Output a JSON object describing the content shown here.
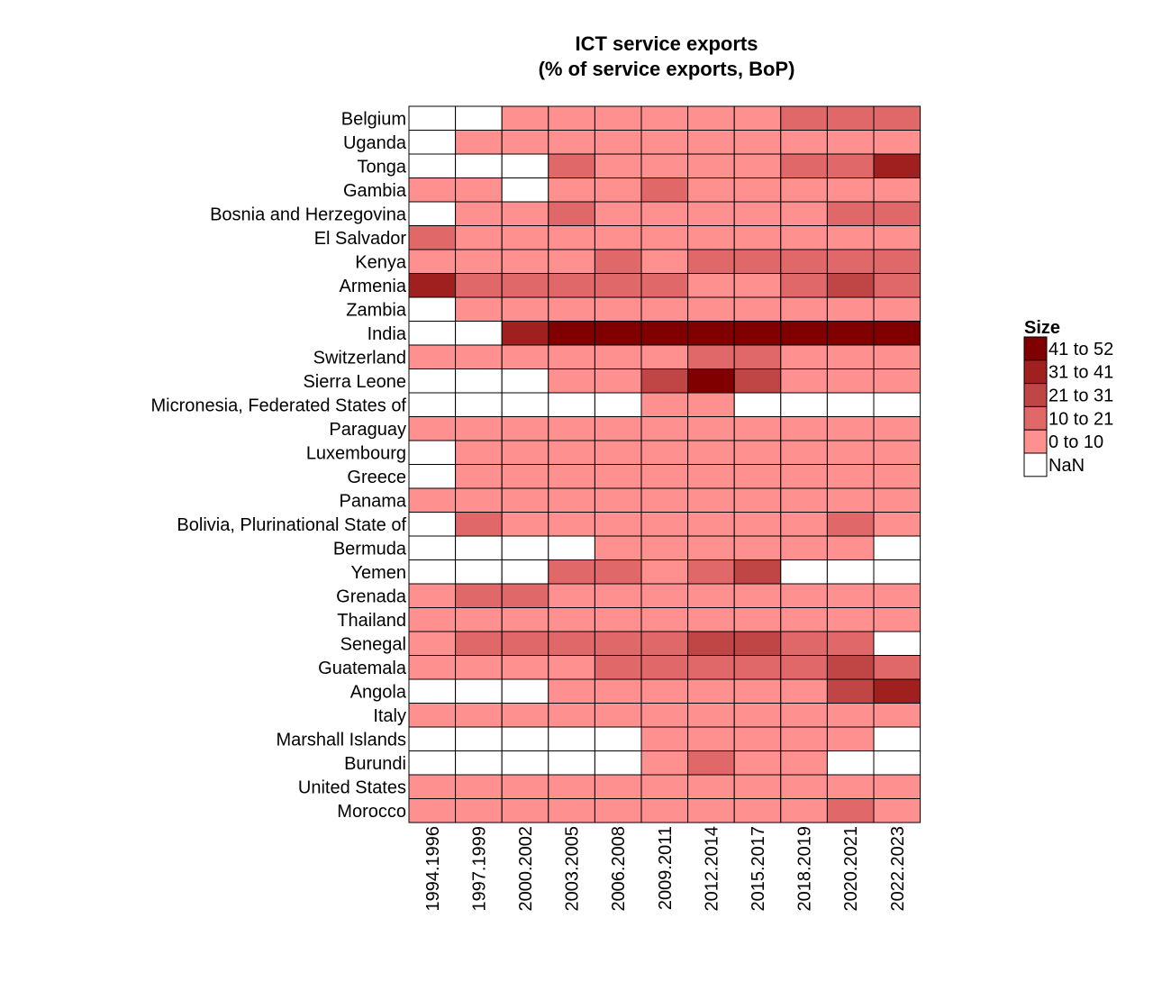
{
  "chart_data": {
    "type": "heatmap",
    "title_lines": [
      "ICT service exports",
      "(% of service exports, BoP)"
    ],
    "columns": [
      "1994.1996",
      "1997.1999",
      "2000.2002",
      "2003.2005",
      "2006.2008",
      "2009.2011",
      "2012.2014",
      "2015.2017",
      "2018.2019",
      "2020.2021",
      "2022.2023"
    ],
    "rows": [
      "Belgium",
      "Uganda",
      "Tonga",
      "Gambia",
      "Bosnia and Herzegovina",
      "El Salvador",
      "Kenya",
      "Armenia",
      "Zambia",
      "India",
      "Switzerland",
      "Sierra Leone",
      "Micronesia, Federated States of",
      "Paraguay",
      "Luxembourg",
      "Greece",
      "Panama",
      "Bolivia, Plurinational State of",
      "Bermuda",
      "Yemen",
      "Grenada",
      "Thailand",
      "Senegal",
      "Guatemala",
      "Angola",
      "Italy",
      "Marshall Islands",
      "Burundi",
      "United States",
      "Morocco"
    ],
    "bins": [
      [
        -1,
        -1,
        0,
        0,
        0,
        0,
        0,
        0,
        1,
        1,
        1
      ],
      [
        -1,
        0,
        0,
        0,
        0,
        0,
        0,
        0,
        0,
        0,
        0
      ],
      [
        -1,
        -1,
        -1,
        1,
        0,
        0,
        0,
        0,
        1,
        1,
        3
      ],
      [
        0,
        0,
        -1,
        0,
        0,
        1,
        0,
        0,
        0,
        0,
        0
      ],
      [
        -1,
        0,
        0,
        1,
        0,
        0,
        0,
        0,
        0,
        1,
        1
      ],
      [
        1,
        0,
        0,
        0,
        0,
        0,
        0,
        0,
        0,
        0,
        0
      ],
      [
        0,
        0,
        0,
        0,
        1,
        0,
        1,
        1,
        1,
        1,
        1
      ],
      [
        3,
        1,
        1,
        1,
        1,
        1,
        0,
        0,
        1,
        2,
        1
      ],
      [
        -1,
        0,
        0,
        0,
        0,
        0,
        0,
        0,
        0,
        0,
        0
      ],
      [
        -1,
        -1,
        3,
        4,
        4,
        4,
        4,
        4,
        4,
        4,
        4
      ],
      [
        0,
        0,
        0,
        0,
        0,
        0,
        1,
        1,
        0,
        0,
        0
      ],
      [
        -1,
        -1,
        -1,
        0,
        0,
        2,
        4,
        2,
        0,
        0,
        0
      ],
      [
        -1,
        -1,
        -1,
        -1,
        -1,
        0,
        0,
        -1,
        -1,
        -1,
        -1
      ],
      [
        0,
        0,
        0,
        0,
        0,
        0,
        0,
        0,
        0,
        0,
        0
      ],
      [
        -1,
        0,
        0,
        0,
        0,
        0,
        0,
        0,
        0,
        0,
        0
      ],
      [
        -1,
        0,
        0,
        0,
        0,
        0,
        0,
        0,
        0,
        0,
        0
      ],
      [
        0,
        0,
        0,
        0,
        0,
        0,
        0,
        0,
        0,
        0,
        0
      ],
      [
        -1,
        1,
        0,
        0,
        0,
        0,
        0,
        0,
        0,
        1,
        0
      ],
      [
        -1,
        -1,
        -1,
        -1,
        0,
        0,
        0,
        0,
        0,
        0,
        -1
      ],
      [
        -1,
        -1,
        -1,
        1,
        1,
        0,
        1,
        2,
        -1,
        -1,
        -1
      ],
      [
        0,
        1,
        1,
        0,
        0,
        0,
        0,
        0,
        0,
        0,
        0
      ],
      [
        0,
        0,
        0,
        0,
        0,
        0,
        0,
        0,
        0,
        0,
        0
      ],
      [
        0,
        1,
        1,
        1,
        1,
        1,
        2,
        2,
        1,
        1,
        -1
      ],
      [
        0,
        0,
        0,
        0,
        1,
        1,
        1,
        1,
        1,
        2,
        1
      ],
      [
        -1,
        -1,
        -1,
        0,
        0,
        0,
        0,
        0,
        0,
        2,
        3
      ],
      [
        0,
        0,
        0,
        0,
        0,
        0,
        0,
        0,
        0,
        0,
        0
      ],
      [
        -1,
        -1,
        -1,
        -1,
        -1,
        0,
        0,
        0,
        0,
        0,
        -1
      ],
      [
        -1,
        -1,
        -1,
        -1,
        -1,
        0,
        1,
        0,
        0,
        -1,
        -1
      ],
      [
        0,
        0,
        0,
        0,
        0,
        0,
        0,
        0,
        0,
        0,
        0
      ],
      [
        0,
        0,
        0,
        0,
        0,
        0,
        0,
        0,
        0,
        1,
        0
      ]
    ],
    "legend": {
      "title": "Size",
      "items": [
        {
          "label": "41 to 52",
          "color": "#800000",
          "bin": 4
        },
        {
          "label": "31 to 41",
          "color": "#a02020",
          "bin": 3
        },
        {
          "label": "21 to 31",
          "color": "#c04545",
          "bin": 2
        },
        {
          "label": "10 to 21",
          "color": "#e06868",
          "bin": 1
        },
        {
          "label": "0 to 10",
          "color": "#ff9090",
          "bin": 0
        },
        {
          "label": "NaN",
          "color": "#ffffff",
          "bin": -1
        }
      ]
    }
  }
}
